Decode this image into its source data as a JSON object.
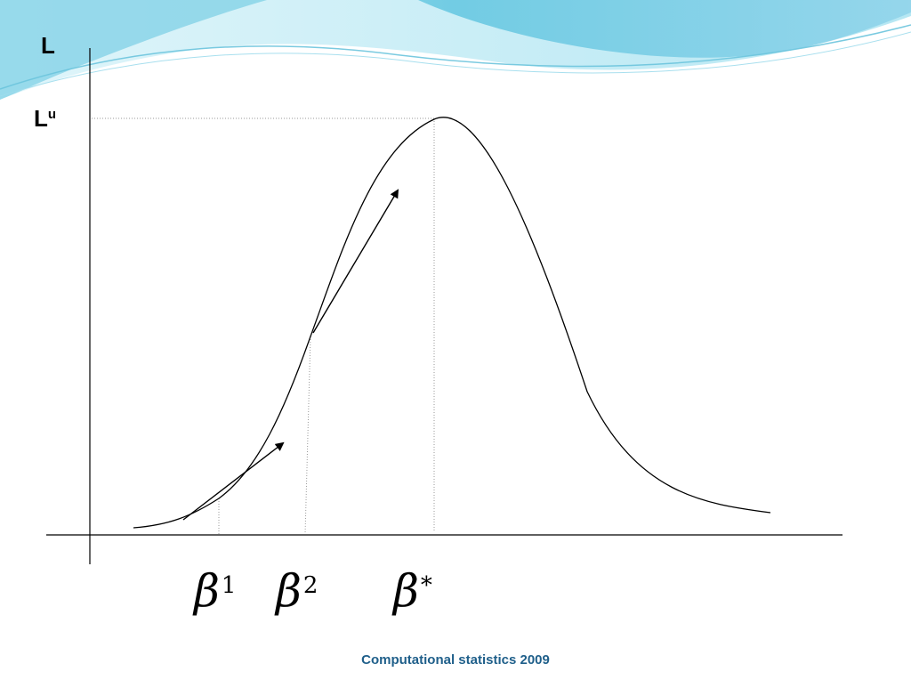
{
  "labels": {
    "y_axis": "L",
    "upper_base": "L",
    "upper_sup": "u",
    "beta1_base": "β",
    "beta1_sup": "1",
    "beta2_base": "β",
    "beta2_sup": "2",
    "beta_star_base": "β",
    "beta_star_sup": "*"
  },
  "footer": {
    "text": "Computational statistics 2009"
  },
  "theme": {
    "wave_colors": [
      "#bfe9f3",
      "#8fd7ea",
      "#5fc3df",
      "#3aaed3"
    ],
    "footer_color": "#1f5f8a",
    "line_color": "#000000",
    "guide_color": "#9a9a9a"
  },
  "icons": {
    "arrow_1": "arrow-up-right-icon",
    "arrow_2": "arrow-up-right-icon"
  }
}
